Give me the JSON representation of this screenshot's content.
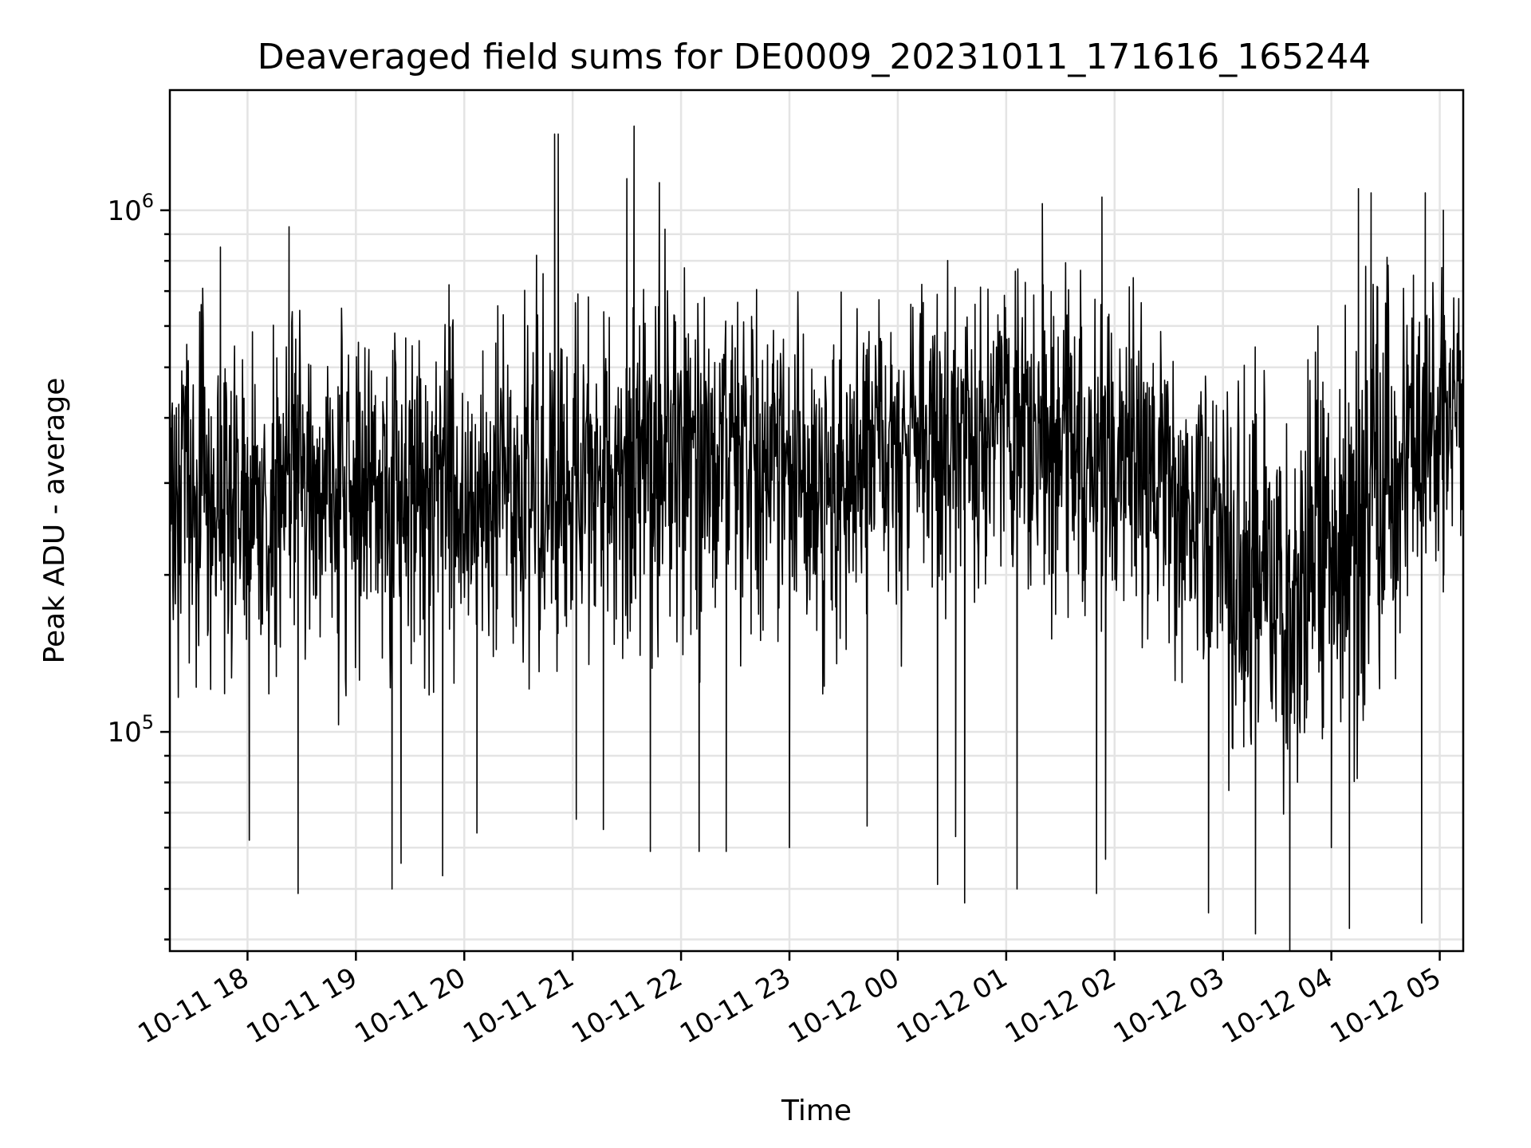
{
  "chart_data": {
    "type": "line",
    "title": "Deaveraged field sums for DE0009_20231011_171616_165244",
    "xlabel": "Time",
    "ylabel": "Peak ADU - average",
    "yscale": "log",
    "xlim": [
      "2023-10-11 17:17",
      "2023-10-12 05:13"
    ],
    "ylim": [
      38000,
      1700000
    ],
    "grid": true,
    "color": "#000000",
    "grid_color": "#e4e4e4",
    "x_ticks": [
      {
        "time": "2023-10-11 18:00",
        "label": "10-11 18"
      },
      {
        "time": "2023-10-11 19:00",
        "label": "10-11 19"
      },
      {
        "time": "2023-10-11 20:00",
        "label": "10-11 20"
      },
      {
        "time": "2023-10-11 21:00",
        "label": "10-11 21"
      },
      {
        "time": "2023-10-11 22:00",
        "label": "10-11 22"
      },
      {
        "time": "2023-10-11 23:00",
        "label": "10-11 23"
      },
      {
        "time": "2023-10-12 00:00",
        "label": "10-12 00"
      },
      {
        "time": "2023-10-12 01:00",
        "label": "10-12 01"
      },
      {
        "time": "2023-10-12 02:00",
        "label": "10-12 02"
      },
      {
        "time": "2023-10-12 03:00",
        "label": "10-12 03"
      },
      {
        "time": "2023-10-12 04:00",
        "label": "10-12 04"
      },
      {
        "time": "2023-10-12 05:00",
        "label": "10-12 05"
      }
    ],
    "y_major_ticks": [
      {
        "value": 100000,
        "base": "10",
        "exp": "5"
      },
      {
        "value": 1000000,
        "base": "10",
        "exp": "6"
      }
    ],
    "y_minor_ticks": [
      40000,
      50000,
      60000,
      70000,
      80000,
      90000,
      200000,
      300000,
      400000,
      500000,
      600000,
      700000,
      800000,
      900000
    ],
    "series_envelope": [
      {
        "time": "2023-10-11 17:17",
        "typical": 280000,
        "low": 160000,
        "high": 480000
      },
      {
        "time": "2023-10-11 17:40",
        "typical": 300000,
        "low": 150000,
        "high": 600000
      },
      {
        "time": "2023-10-11 18:00",
        "typical": 260000,
        "low": 140000,
        "high": 500000
      },
      {
        "time": "2023-10-11 18:30",
        "typical": 270000,
        "low": 130000,
        "high": 520000
      },
      {
        "time": "2023-10-11 19:00",
        "typical": 300000,
        "low": 150000,
        "high": 520000
      },
      {
        "time": "2023-10-11 19:30",
        "typical": 300000,
        "low": 140000,
        "high": 540000
      },
      {
        "time": "2023-10-11 20:00",
        "typical": 300000,
        "low": 160000,
        "high": 560000
      },
      {
        "time": "2023-10-11 20:30",
        "typical": 300000,
        "low": 170000,
        "high": 580000
      },
      {
        "time": "2023-10-11 21:00",
        "typical": 280000,
        "low": 150000,
        "high": 560000
      },
      {
        "time": "2023-10-11 21:30",
        "typical": 330000,
        "low": 160000,
        "high": 640000
      },
      {
        "time": "2023-10-11 22:00",
        "typical": 360000,
        "low": 170000,
        "high": 700000
      },
      {
        "time": "2023-10-11 22:30",
        "typical": 360000,
        "low": 180000,
        "high": 640000
      },
      {
        "time": "2023-10-11 23:00",
        "typical": 320000,
        "low": 170000,
        "high": 580000
      },
      {
        "time": "2023-10-11 23:30",
        "typical": 300000,
        "low": 160000,
        "high": 540000
      },
      {
        "time": "2023-10-12 00:00",
        "typical": 360000,
        "low": 190000,
        "high": 620000
      },
      {
        "time": "2023-10-12 00:30",
        "typical": 380000,
        "low": 200000,
        "high": 660000
      },
      {
        "time": "2023-10-12 01:00",
        "typical": 390000,
        "low": 210000,
        "high": 680000
      },
      {
        "time": "2023-10-12 01:30",
        "typical": 380000,
        "low": 200000,
        "high": 650000
      },
      {
        "time": "2023-10-12 02:00",
        "typical": 340000,
        "low": 180000,
        "high": 600000
      },
      {
        "time": "2023-10-12 02:30",
        "typical": 320000,
        "low": 170000,
        "high": 560000
      },
      {
        "time": "2023-10-12 03:00",
        "typical": 200000,
        "low": 105000,
        "high": 420000
      },
      {
        "time": "2023-10-12 03:30",
        "typical": 170000,
        "low": 85000,
        "high": 400000
      },
      {
        "time": "2023-10-12 04:00",
        "typical": 210000,
        "low": 95000,
        "high": 520000
      },
      {
        "time": "2023-10-12 04:30",
        "typical": 280000,
        "low": 120000,
        "high": 650000
      },
      {
        "time": "2023-10-12 05:00",
        "typical": 400000,
        "low": 200000,
        "high": 750000
      },
      {
        "time": "2023-10-12 05:13",
        "typical": 450000,
        "low": 280000,
        "high": 700000
      }
    ],
    "spikes": [
      {
        "time": "2023-10-11 17:45",
        "value": 850000
      },
      {
        "time": "2023-10-11 18:23",
        "value": 930000
      },
      {
        "time": "2023-10-11 18:01",
        "value": 62000
      },
      {
        "time": "2023-10-11 18:28",
        "value": 49000
      },
      {
        "time": "2023-10-11 19:20",
        "value": 50000
      },
      {
        "time": "2023-10-11 19:25",
        "value": 56000
      },
      {
        "time": "2023-10-11 19:48",
        "value": 53000
      },
      {
        "time": "2023-10-11 20:07",
        "value": 64000
      },
      {
        "time": "2023-10-11 20:40",
        "value": 820000
      },
      {
        "time": "2023-10-11 20:50",
        "value": 1400000
      },
      {
        "time": "2023-10-11 20:52",
        "value": 1400000
      },
      {
        "time": "2023-10-11 21:02",
        "value": 68000
      },
      {
        "time": "2023-10-11 21:17",
        "value": 65000
      },
      {
        "time": "2023-10-11 21:30",
        "value": 1150000
      },
      {
        "time": "2023-10-11 21:34",
        "value": 1450000
      },
      {
        "time": "2023-10-11 21:48",
        "value": 1130000
      },
      {
        "time": "2023-10-11 21:43",
        "value": 59000
      },
      {
        "time": "2023-10-11 22:10",
        "value": 59000
      },
      {
        "time": "2023-10-11 22:25",
        "value": 59000
      },
      {
        "time": "2023-10-11 23:00",
        "value": 60000
      },
      {
        "time": "2023-10-11 23:43",
        "value": 66000
      },
      {
        "time": "2023-10-12 00:22",
        "value": 51000
      },
      {
        "time": "2023-10-12 00:32",
        "value": 63000
      },
      {
        "time": "2023-10-12 00:37",
        "value": 47000
      },
      {
        "time": "2023-10-12 01:06",
        "value": 50000
      },
      {
        "time": "2023-10-12 01:20",
        "value": 1030000
      },
      {
        "time": "2023-10-12 01:53",
        "value": 1060000
      },
      {
        "time": "2023-10-12 01:50",
        "value": 49000
      },
      {
        "time": "2023-10-12 01:55",
        "value": 57000
      },
      {
        "time": "2023-10-12 02:52",
        "value": 45000
      },
      {
        "time": "2023-10-12 03:18",
        "value": 41000
      },
      {
        "time": "2023-10-12 03:37",
        "value": 36000
      },
      {
        "time": "2023-10-12 04:00",
        "value": 60000
      },
      {
        "time": "2023-10-12 04:10",
        "value": 42000
      },
      {
        "time": "2023-10-12 04:15",
        "value": 1100000
      },
      {
        "time": "2023-10-12 04:22",
        "value": 1080000
      },
      {
        "time": "2023-10-12 04:50",
        "value": 43000
      },
      {
        "time": "2023-10-12 04:52",
        "value": 1080000
      },
      {
        "time": "2023-10-12 05:02",
        "value": 1000000
      }
    ]
  }
}
